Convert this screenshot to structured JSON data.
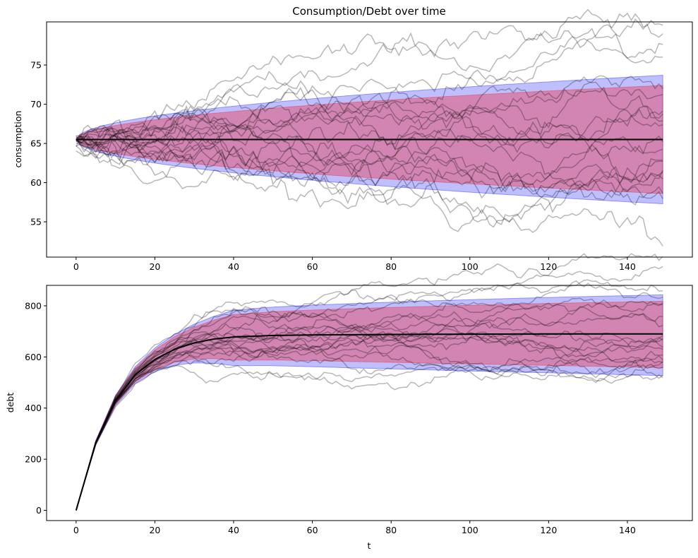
{
  "figure": {
    "title": "Consumption/Debt over time"
  },
  "colors": {
    "band_outer": "#0000ff",
    "band_inner": "#ff0000",
    "sample_paths": "#000000",
    "mean_line": "#000000",
    "axes": "#000000",
    "background": "#ffffff"
  },
  "chart_data": [
    {
      "type": "line",
      "title": "Consumption/Debt over time",
      "xlabel": "",
      "ylabel": "consumption",
      "xlim": [
        -7.5,
        156.5
      ],
      "ylim": [
        50.5,
        80.5
      ],
      "xticks": [
        0,
        20,
        40,
        60,
        80,
        100,
        120,
        140
      ],
      "yticks": [
        55,
        60,
        65,
        70,
        75
      ],
      "grid": false,
      "legend": "none",
      "t_range": [
        0,
        149
      ],
      "mean": {
        "t": [
          0,
          149
        ],
        "values": [
          65.5,
          65.5
        ]
      },
      "bands": [
        {
          "level": "outer",
          "color": "blue",
          "upper_at_t149": 73.7,
          "lower_at_t149": 57.3,
          "center": 65.5
        },
        {
          "level": "inner",
          "color": "red",
          "upper_at_t149": 72.4,
          "lower_at_t149": 58.6,
          "center": 65.5
        }
      ],
      "sample_paths_count": 20
    },
    {
      "type": "line",
      "title": "",
      "xlabel": "t",
      "ylabel": "debt",
      "xlim": [
        -7.5,
        156.5
      ],
      "ylim": [
        -40,
        880
      ],
      "xticks": [
        0,
        20,
        40,
        60,
        80,
        100,
        120,
        140
      ],
      "yticks": [
        0,
        200,
        400,
        600,
        800
      ],
      "grid": false,
      "legend": "none",
      "t_range": [
        0,
        149
      ],
      "mean": {
        "t": [
          0,
          5,
          10,
          15,
          20,
          25,
          30,
          35,
          40,
          50,
          60,
          80,
          100,
          120,
          149
        ],
        "values": [
          0,
          265,
          430,
          530,
          590,
          630,
          655,
          670,
          678,
          684,
          686,
          688,
          689,
          690,
          690
        ]
      },
      "bands": [
        {
          "level": "outer",
          "color": "blue",
          "upper_at_t149": 843,
          "lower_at_t149": 527
        },
        {
          "level": "inner",
          "color": "red",
          "upper_at_t149": 818,
          "lower_at_t149": 558
        }
      ],
      "sample_paths_count": 20
    }
  ]
}
